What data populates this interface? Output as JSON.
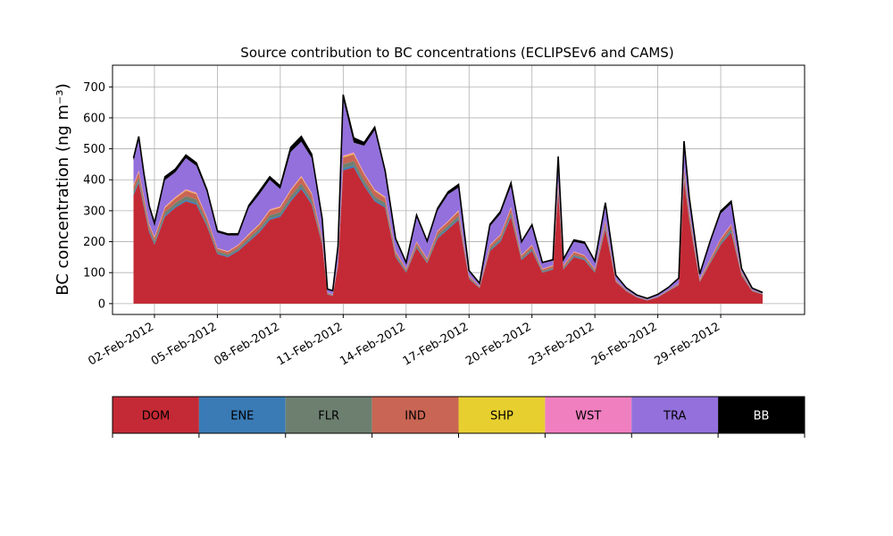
{
  "chart_data": {
    "type": "area",
    "stacked": true,
    "title": "Source contribution to BC concentrations (ECLIPSEv6 and CAMS)",
    "ylabel": "BC concentration (ng m⁻³)",
    "xlabel": "",
    "xlim": [
      "2012-01-31",
      "2012-03-04"
    ],
    "ylim": [
      -35,
      770
    ],
    "grid": true,
    "y_ticks": [
      0,
      100,
      200,
      300,
      400,
      500,
      600,
      700
    ],
    "x_ticks": [
      {
        "date": "2012-02-02",
        "label": "02-Feb-2012"
      },
      {
        "date": "2012-02-05",
        "label": "05-Feb-2012"
      },
      {
        "date": "2012-02-08",
        "label": "08-Feb-2012"
      },
      {
        "date": "2012-02-11",
        "label": "11-Feb-2012"
      },
      {
        "date": "2012-02-14",
        "label": "14-Feb-2012"
      },
      {
        "date": "2012-02-17",
        "label": "17-Feb-2012"
      },
      {
        "date": "2012-02-20",
        "label": "20-Feb-2012"
      },
      {
        "date": "2012-02-23",
        "label": "23-Feb-2012"
      },
      {
        "date": "2012-02-26",
        "label": "26-Feb-2012"
      },
      {
        "date": "2012-02-29",
        "label": "29-Feb-2012"
      }
    ],
    "legend": {
      "placement": "bottom",
      "entries": [
        {
          "name": "DOM",
          "color": "#c42a35"
        },
        {
          "name": "ENE",
          "color": "#3a7bb5"
        },
        {
          "name": "FLR",
          "color": "#6d8070"
        },
        {
          "name": "IND",
          "color": "#c96554"
        },
        {
          "name": "SHP",
          "color": "#e8cf30"
        },
        {
          "name": "WST",
          "color": "#f07fbf"
        },
        {
          "name": "TRA",
          "color": "#9370db"
        },
        {
          "name": "BB",
          "color": "#000000"
        }
      ]
    },
    "x": [
      "2012-02-01",
      "2012-02-01T06",
      "2012-02-01T12",
      "2012-02-01T18",
      "2012-02-02",
      "2012-02-02T12",
      "2012-02-03",
      "2012-02-03T12",
      "2012-02-04",
      "2012-02-04T12",
      "2012-02-05",
      "2012-02-05T12",
      "2012-02-06",
      "2012-02-06T12",
      "2012-02-07",
      "2012-02-07T12",
      "2012-02-08",
      "2012-02-08T12",
      "2012-02-09",
      "2012-02-09T12",
      "2012-02-10",
      "2012-02-10T06",
      "2012-02-10T12",
      "2012-02-10T18",
      "2012-02-11",
      "2012-02-11T12",
      "2012-02-12",
      "2012-02-12T12",
      "2012-02-13",
      "2012-02-13T12",
      "2012-02-14",
      "2012-02-14T12",
      "2012-02-15",
      "2012-02-15T12",
      "2012-02-16",
      "2012-02-16T12",
      "2012-02-17",
      "2012-02-17T12",
      "2012-02-18",
      "2012-02-18T12",
      "2012-02-19",
      "2012-02-19T12",
      "2012-02-20",
      "2012-02-20T12",
      "2012-02-21",
      "2012-02-21T06",
      "2012-02-21T12",
      "2012-02-22",
      "2012-02-22T12",
      "2012-02-23",
      "2012-02-23T12",
      "2012-02-24",
      "2012-02-24T12",
      "2012-02-25",
      "2012-02-25T12",
      "2012-02-26",
      "2012-02-26T12",
      "2012-02-27",
      "2012-02-27T06",
      "2012-02-27T12",
      "2012-02-28",
      "2012-02-28T12",
      "2012-02-29",
      "2012-02-29T12",
      "2012-03-01",
      "2012-03-01T12",
      "2012-03-02"
    ],
    "series": [
      {
        "name": "DOM",
        "values": [
          350,
          390,
          310,
          230,
          190,
          280,
          310,
          330,
          320,
          250,
          160,
          150,
          170,
          200,
          230,
          270,
          280,
          330,
          370,
          320,
          190,
          30,
          25,
          120,
          430,
          440,
          380,
          330,
          310,
          150,
          100,
          180,
          130,
          210,
          240,
          270,
          80,
          50,
          170,
          200,
          280,
          140,
          170,
          100,
          110,
          360,
          110,
          150,
          140,
          100,
          240,
          70,
          40,
          20,
          10,
          20,
          40,
          60,
          400,
          270,
          70,
          130,
          190,
          230,
          90,
          40,
          30
        ]
      },
      {
        "name": "ENE",
        "values": [
          5,
          5,
          5,
          4,
          4,
          5,
          5,
          5,
          5,
          4,
          3,
          3,
          3,
          4,
          4,
          5,
          5,
          5,
          6,
          5,
          3,
          1,
          1,
          2,
          6,
          6,
          5,
          5,
          5,
          3,
          2,
          3,
          2,
          4,
          4,
          5,
          2,
          1,
          3,
          4,
          5,
          3,
          3,
          2,
          2,
          6,
          2,
          3,
          3,
          2,
          4,
          1,
          1,
          1,
          1,
          1,
          1,
          1,
          6,
          5,
          1,
          2,
          3,
          4,
          2,
          1,
          1
        ]
      },
      {
        "name": "FLR",
        "values": [
          10,
          12,
          10,
          8,
          8,
          10,
          10,
          12,
          12,
          9,
          6,
          6,
          6,
          7,
          8,
          10,
          10,
          12,
          12,
          11,
          7,
          2,
          2,
          4,
          14,
          14,
          12,
          11,
          10,
          6,
          4,
          6,
          5,
          8,
          8,
          9,
          3,
          2,
          6,
          7,
          9,
          5,
          6,
          4,
          4,
          10,
          4,
          5,
          5,
          4,
          8,
          2,
          1,
          1,
          1,
          1,
          1,
          1,
          10,
          9,
          2,
          4,
          6,
          8,
          3,
          1,
          1
        ]
      },
      {
        "name": "IND",
        "values": [
          15,
          18,
          15,
          12,
          10,
          14,
          15,
          18,
          17,
          13,
          8,
          8,
          9,
          11,
          12,
          15,
          15,
          18,
          20,
          17,
          10,
          2,
          2,
          6,
          22,
          22,
          20,
          18,
          16,
          8,
          5,
          9,
          7,
          11,
          12,
          14,
          4,
          3,
          9,
          10,
          14,
          7,
          9,
          5,
          6,
          15,
          6,
          8,
          7,
          5,
          12,
          3,
          2,
          1,
          1,
          1,
          2,
          3,
          18,
          13,
          4,
          7,
          10,
          12,
          5,
          2,
          1
        ]
      },
      {
        "name": "SHP",
        "values": [
          2,
          2,
          2,
          2,
          2,
          2,
          2,
          2,
          2,
          2,
          1,
          1,
          1,
          2,
          2,
          2,
          2,
          2,
          2,
          2,
          1,
          0,
          0,
          1,
          3,
          3,
          2,
          2,
          2,
          1,
          1,
          1,
          1,
          1,
          1,
          2,
          1,
          0,
          1,
          1,
          2,
          1,
          1,
          1,
          1,
          2,
          1,
          1,
          1,
          1,
          1,
          0,
          0,
          0,
          0,
          0,
          0,
          0,
          2,
          2,
          1,
          1,
          1,
          1,
          1,
          0,
          0
        ]
      },
      {
        "name": "WST",
        "values": [
          3,
          3,
          3,
          2,
          2,
          3,
          3,
          3,
          3,
          2,
          2,
          2,
          2,
          2,
          2,
          3,
          3,
          3,
          3,
          3,
          2,
          1,
          1,
          1,
          4,
          4,
          3,
          3,
          3,
          2,
          1,
          2,
          1,
          2,
          2,
          2,
          1,
          1,
          2,
          2,
          2,
          1,
          2,
          1,
          1,
          3,
          1,
          2,
          1,
          1,
          2,
          1,
          0,
          0,
          0,
          0,
          0,
          1,
          3,
          2,
          1,
          1,
          2,
          2,
          1,
          0,
          0
        ]
      },
      {
        "name": "TRA",
        "values": [
          75,
          100,
          65,
          50,
          35,
          85,
          80,
          100,
          86,
          80,
          50,
          50,
          29,
          84,
          95,
          95,
          55,
          120,
          110,
          112,
          57,
          9,
          9,
          46,
          181,
          31,
          88,
          191,
          74,
          35,
          17,
          79,
          52,
          64,
          86,
          73,
          14,
          8,
          59,
          66,
          68,
          39,
          59,
          18,
          15,
          64,
          15,
          31,
          36,
          20,
          49,
          13,
          6,
          4,
          3,
          6,
          6,
          14,
          71,
          36,
          14,
          52,
          79,
          66,
          8,
          5,
          2
        ]
      },
      {
        "name": "BB",
        "values": [
          10,
          10,
          10,
          8,
          9,
          11,
          10,
          10,
          10,
          8,
          5,
          5,
          6,
          8,
          10,
          10,
          10,
          15,
          17,
          12,
          5,
          2,
          2,
          6,
          15,
          15,
          10,
          10,
          9,
          5,
          3,
          6,
          4,
          8,
          8,
          10,
          2,
          1,
          6,
          8,
          10,
          4,
          5,
          2,
          3,
          15,
          4,
          6,
          6,
          4,
          10,
          2,
          1,
          1,
          1,
          1,
          2,
          2,
          15,
          8,
          3,
          5,
          8,
          8,
          3,
          1,
          1
        ]
      }
    ]
  }
}
